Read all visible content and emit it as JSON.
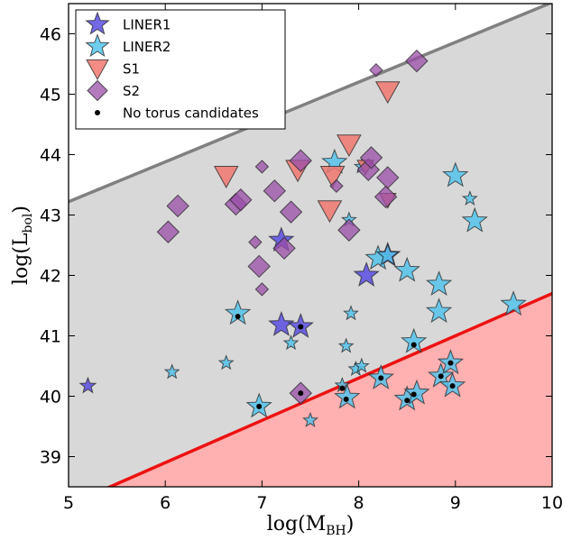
{
  "chart_data": {
    "type": "scatter",
    "title": "",
    "xlabel": "log(M",
    "xlabel_sub": "BH",
    "ylabel": "log(L",
    "ylabel_sub": "bol",
    "xlim": [
      5,
      10
    ],
    "ylim": [
      38.5,
      46.5
    ],
    "xticks": [
      5,
      6,
      7,
      8,
      9,
      10
    ],
    "yticks": [
      39,
      40,
      41,
      42,
      43,
      44,
      45,
      46
    ],
    "grid": false,
    "legend_position": "top-left",
    "regions": [
      {
        "name": "upper-limit-line",
        "color": "#808080",
        "points": [
          [
            5,
            43.22
          ],
          [
            10,
            46.52
          ]
        ]
      },
      {
        "name": "lower-limit-line",
        "color": "#ee1111",
        "points": [
          [
            5,
            38.2
          ],
          [
            10,
            41.7
          ]
        ]
      }
    ],
    "colors": {
      "grey_fill": "#d8d8d8",
      "red_fill": "#ffb0b0",
      "liner1": "#5a4ee0",
      "liner2": "#55c4ec",
      "s1": "#f07870",
      "s2": "#9a4ea8"
    },
    "series": [
      {
        "name": "LINER1",
        "marker": "star",
        "color": "#5a4ee0",
        "points": [
          [
            5.2,
            40.17,
            9
          ],
          [
            7.2,
            42.58,
            14
          ],
          [
            7.2,
            41.18,
            14
          ],
          [
            7.4,
            41.15,
            14
          ],
          [
            8.08,
            42.0,
            14
          ],
          [
            8.3,
            42.33,
            14
          ]
        ]
      },
      {
        "name": "LINER2",
        "marker": "star",
        "color": "#55c4ec",
        "points": [
          [
            6.07,
            40.4,
            8
          ],
          [
            6.63,
            40.55,
            8
          ],
          [
            6.75,
            41.37,
            14
          ],
          [
            6.97,
            39.83,
            14
          ],
          [
            7.3,
            40.88,
            8
          ],
          [
            7.5,
            39.6,
            8
          ],
          [
            7.75,
            43.87,
            14
          ],
          [
            7.83,
            40.18,
            8
          ],
          [
            7.87,
            40.83,
            8
          ],
          [
            7.88,
            39.98,
            14
          ],
          [
            7.9,
            42.92,
            8
          ],
          [
            7.92,
            41.37,
            8
          ],
          [
            7.97,
            40.45,
            8
          ],
          [
            8.03,
            40.5,
            8
          ],
          [
            8.03,
            43.8,
            8
          ],
          [
            8.2,
            42.28,
            14
          ],
          [
            8.23,
            40.3,
            14
          ],
          [
            8.3,
            42.33,
            12
          ],
          [
            8.5,
            42.08,
            14
          ],
          [
            8.5,
            39.95,
            14
          ],
          [
            8.57,
            40.9,
            14
          ],
          [
            8.6,
            40.05,
            14
          ],
          [
            8.83,
            41.85,
            14
          ],
          [
            8.83,
            41.4,
            14
          ],
          [
            8.85,
            40.33,
            14
          ],
          [
            8.95,
            40.55,
            14
          ],
          [
            8.97,
            40.17,
            14
          ],
          [
            9.0,
            43.65,
            14
          ],
          [
            9.15,
            43.27,
            8
          ],
          [
            9.2,
            42.9,
            14
          ],
          [
            9.6,
            41.52,
            14
          ]
        ]
      },
      {
        "name": "S1",
        "marker": "triangle-down",
        "color": "#f07870",
        "points": [
          [
            6.63,
            43.65,
            13
          ],
          [
            7.37,
            43.75,
            13
          ],
          [
            7.7,
            43.08,
            13
          ],
          [
            7.73,
            43.65,
            13
          ],
          [
            7.9,
            44.17,
            13
          ],
          [
            8.07,
            43.8,
            9
          ],
          [
            8.3,
            45.05,
            13
          ],
          [
            8.3,
            43.25,
            9
          ]
        ]
      },
      {
        "name": "S2",
        "marker": "diamond",
        "color": "#9a4ea8",
        "points": [
          [
            6.03,
            42.72,
            12
          ],
          [
            6.13,
            43.15,
            12
          ],
          [
            6.73,
            43.18,
            12
          ],
          [
            6.78,
            43.25,
            12
          ],
          [
            7.13,
            43.4,
            12
          ],
          [
            7.23,
            42.45,
            12
          ],
          [
            7.3,
            43.05,
            12
          ],
          [
            7.4,
            43.9,
            12
          ],
          [
            7.4,
            40.05,
            12
          ],
          [
            7.77,
            43.48,
            7
          ],
          [
            7.9,
            42.75,
            12
          ],
          [
            8.1,
            43.75,
            12
          ],
          [
            8.13,
            43.95,
            12
          ],
          [
            8.28,
            43.3,
            12
          ],
          [
            8.3,
            43.62,
            12
          ],
          [
            8.18,
            45.4,
            7
          ],
          [
            8.6,
            45.55,
            12
          ],
          [
            6.97,
            42.15,
            12
          ],
          [
            7.0,
            43.8,
            7
          ],
          [
            6.93,
            42.55,
            7
          ],
          [
            7.0,
            41.77,
            7
          ]
        ]
      },
      {
        "name": "No torus candidates",
        "marker": "dot",
        "color": "#000000",
        "points": [
          [
            6.75,
            41.32,
            3
          ],
          [
            6.97,
            39.83,
            3
          ],
          [
            7.4,
            41.15,
            3
          ],
          [
            7.4,
            40.05,
            3
          ],
          [
            7.83,
            40.13,
            3
          ],
          [
            7.87,
            39.95,
            3
          ],
          [
            8.23,
            40.3,
            3
          ],
          [
            8.5,
            39.93,
            3
          ],
          [
            8.57,
            40.85,
            3
          ],
          [
            8.57,
            40.03,
            3
          ],
          [
            8.85,
            40.33,
            3
          ],
          [
            8.95,
            40.55,
            3
          ],
          [
            8.97,
            40.17,
            3
          ]
        ]
      }
    ],
    "legend": [
      "LINER1",
      "LINER2",
      "S1",
      "S2",
      "No torus candidates"
    ]
  }
}
